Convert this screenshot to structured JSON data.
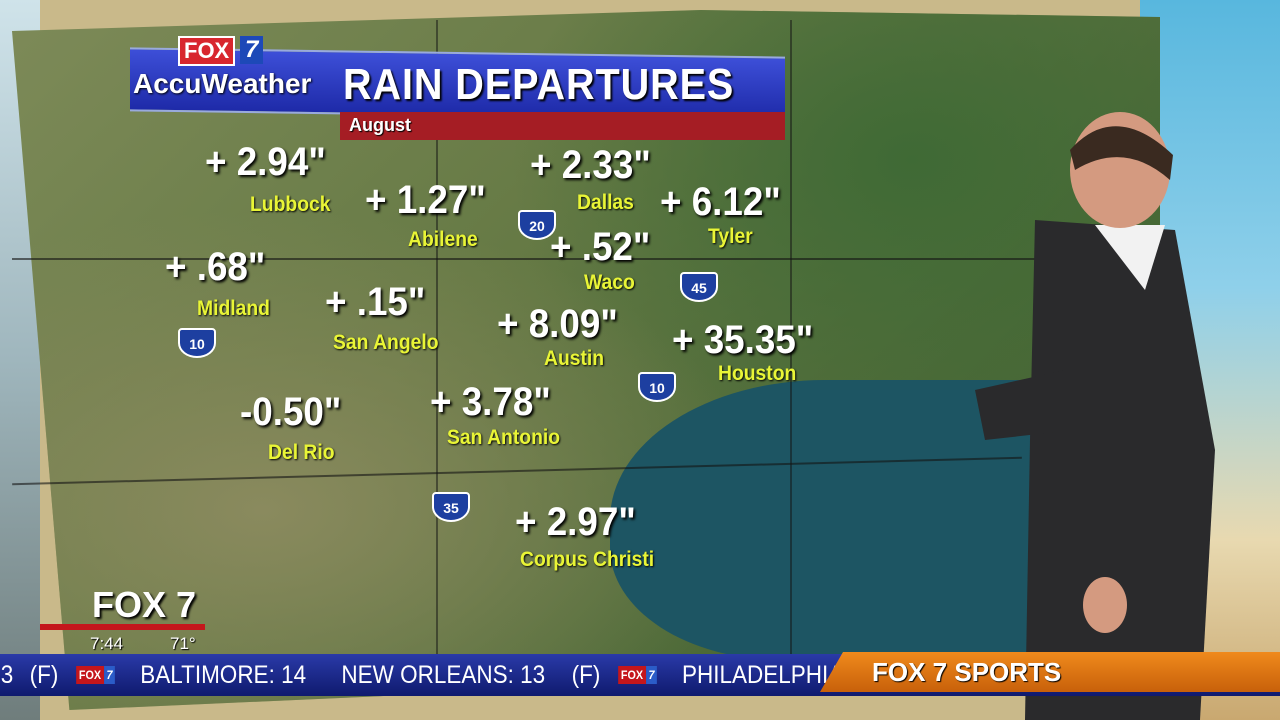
{
  "graphic": {
    "brand": "FOX 7",
    "brand_fox": "FOX",
    "brand_seven": "7",
    "sponsor": "AccuWeather",
    "title": "RAIN DEPARTURES",
    "period": "August"
  },
  "cities": [
    {
      "name": "Lubbock",
      "departure": "+ 2.94\""
    },
    {
      "name": "Abilene",
      "departure": "+ 1.27\""
    },
    {
      "name": "Dallas",
      "departure": "+ 2.33\""
    },
    {
      "name": "Tyler",
      "departure": "+ 6.12\""
    },
    {
      "name": "Midland",
      "departure": "+ .68\""
    },
    {
      "name": "Waco",
      "departure": "+ .52\""
    },
    {
      "name": "San Angelo",
      "departure": "+ .15\""
    },
    {
      "name": "Austin",
      "departure": "+ 8.09\""
    },
    {
      "name": "Houston",
      "departure": "+ 35.35\""
    },
    {
      "name": "Del Rio",
      "departure": "-0.50\""
    },
    {
      "name": "San Antonio",
      "departure": "+ 3.78\""
    },
    {
      "name": "Corpus Christi",
      "departure": "+ 2.97\""
    }
  ],
  "interstates": [
    "20",
    "45",
    "10",
    "10",
    "35"
  ],
  "corner_bug": {
    "logo": "FOX 7",
    "time": "7:44",
    "temperature": "71°"
  },
  "ticker": {
    "items": [
      "3",
      "(F)",
      "BALTIMORE: 14",
      "NEW ORLEANS: 13",
      "(F)",
      "PHILADELPHIA"
    ],
    "logo_fox": "FOX",
    "logo_seven": "7",
    "section": "FOX 7 SPORTS"
  },
  "colors": {
    "title_blue": "#1e2aa8",
    "accent_red": "#a51d24",
    "city_yellow": "#e9f536",
    "sports_orange": "#f08a1c"
  }
}
